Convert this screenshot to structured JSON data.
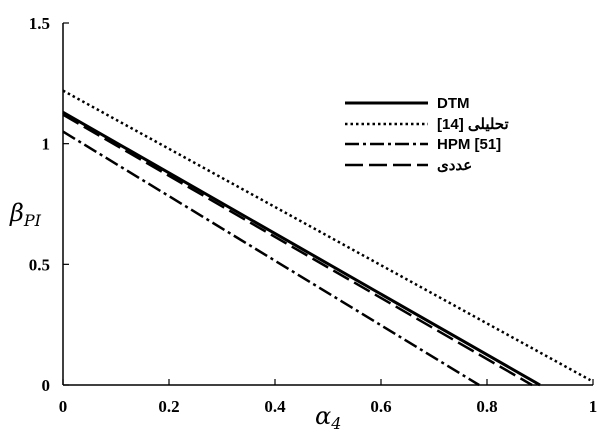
{
  "chart_data": {
    "type": "line",
    "title": "",
    "xlabel": "α4",
    "ylabel": "βPI",
    "xlim": [
      0,
      1
    ],
    "ylim": [
      0,
      1.5
    ],
    "x_ticks": [
      "0",
      "0.2",
      "0.4",
      "0.6",
      "0.8",
      "1"
    ],
    "y_ticks": [
      "0",
      "0.5",
      "1",
      "1.5"
    ],
    "grid": false,
    "legend_position": "top-right",
    "series": [
      {
        "name": "DTM",
        "style": "solid",
        "x": [
          0,
          0.9
        ],
        "y": [
          1.13,
          0
        ]
      },
      {
        "name": "تحلیلی [14]",
        "style": "dotted",
        "x": [
          0,
          0.995
        ],
        "y": [
          1.22,
          0.02
        ]
      },
      {
        "name": "HPM [51]",
        "style": "dashdot",
        "x": [
          0,
          0.785
        ],
        "y": [
          1.05,
          0
        ]
      },
      {
        "name": "عددی",
        "style": "dashed",
        "x": [
          0,
          0.885
        ],
        "y": [
          1.12,
          0
        ]
      }
    ]
  }
}
